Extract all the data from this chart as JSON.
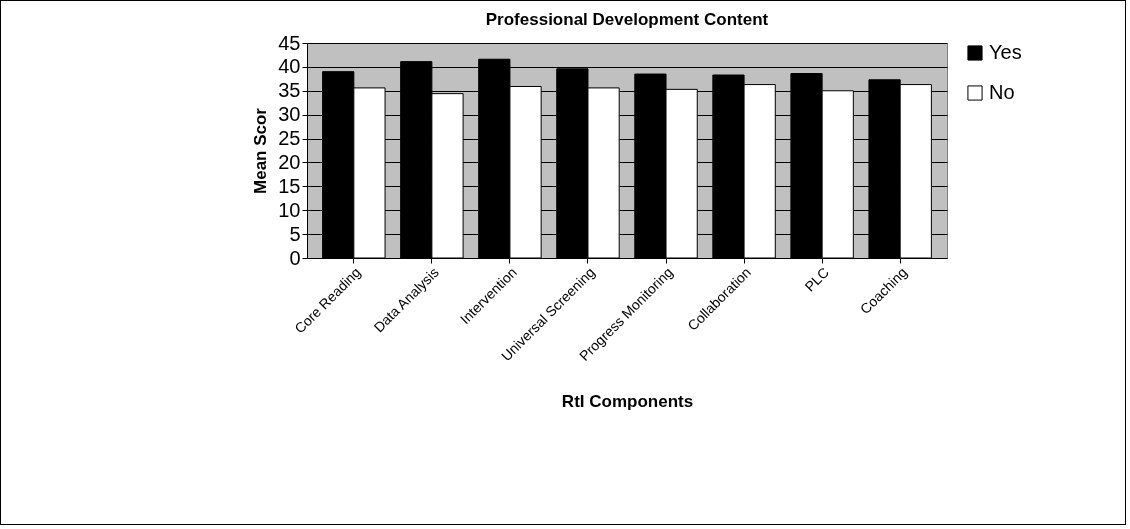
{
  "chart_data": {
    "type": "bar",
    "title": "Professional Development Content",
    "xlabel": "RtI Components",
    "ylabel": "Mean Scor",
    "categories": [
      "Core Reading",
      "Data Analysis",
      "Intervention",
      "Universal Screening",
      "Progress Monitoring",
      "Collaboration",
      "PLC",
      "Coaching"
    ],
    "series": [
      {
        "name": "Yes",
        "color": "#000000",
        "values": [
          39,
          41.1,
          41.6,
          39.6,
          38.5,
          38.3,
          38.6,
          37.3
        ]
      },
      {
        "name": "No",
        "color": "#ffffff",
        "values": [
          35.6,
          34.4,
          35.9,
          35.6,
          35.3,
          36.3,
          35,
          36.3
        ]
      }
    ],
    "ylim": [
      0,
      45
    ],
    "yticks": [
      0,
      5,
      10,
      15,
      20,
      25,
      30,
      35,
      40,
      45
    ],
    "grid": "y",
    "legend": "right"
  }
}
